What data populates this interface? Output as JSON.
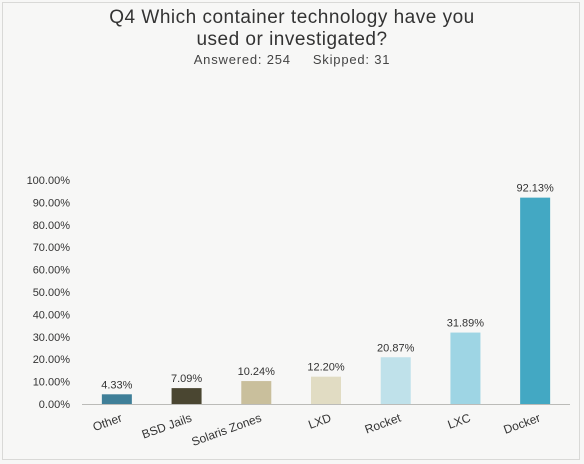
{
  "header": {
    "title_line1": "Q4 Which container technology have you",
    "title_line2": "used or investigated?",
    "answered": "Answered: 254",
    "skipped": "Skipped: 31"
  },
  "chart_data": {
    "type": "bar",
    "title": "Q4 Which container technology have you used or investigated?",
    "categories": [
      "Other",
      "BSD Jails",
      "Solaris Zones",
      "LXD",
      "Rocket",
      "LXC",
      "Docker"
    ],
    "values": [
      4.33,
      7.09,
      10.24,
      12.2,
      20.87,
      31.89,
      92.13
    ],
    "value_labels": [
      "4.33%",
      "7.09%",
      "10.24%",
      "12.20%",
      "20.87%",
      "31.89%",
      "92.13%"
    ],
    "colors": [
      "#3f7f98",
      "#4a4631",
      "#c9bf9c",
      "#e1dcc3",
      "#bfe1ea",
      "#9ed5e4",
      "#43a8c3"
    ],
    "y_ticks": [
      "0.00%",
      "10.00%",
      "20.00%",
      "30.00%",
      "40.00%",
      "50.00%",
      "60.00%",
      "70.00%",
      "80.00%",
      "90.00%",
      "100.00%"
    ],
    "ylim": [
      0,
      100
    ],
    "grid": false,
    "xlabel": "",
    "ylabel": ""
  }
}
